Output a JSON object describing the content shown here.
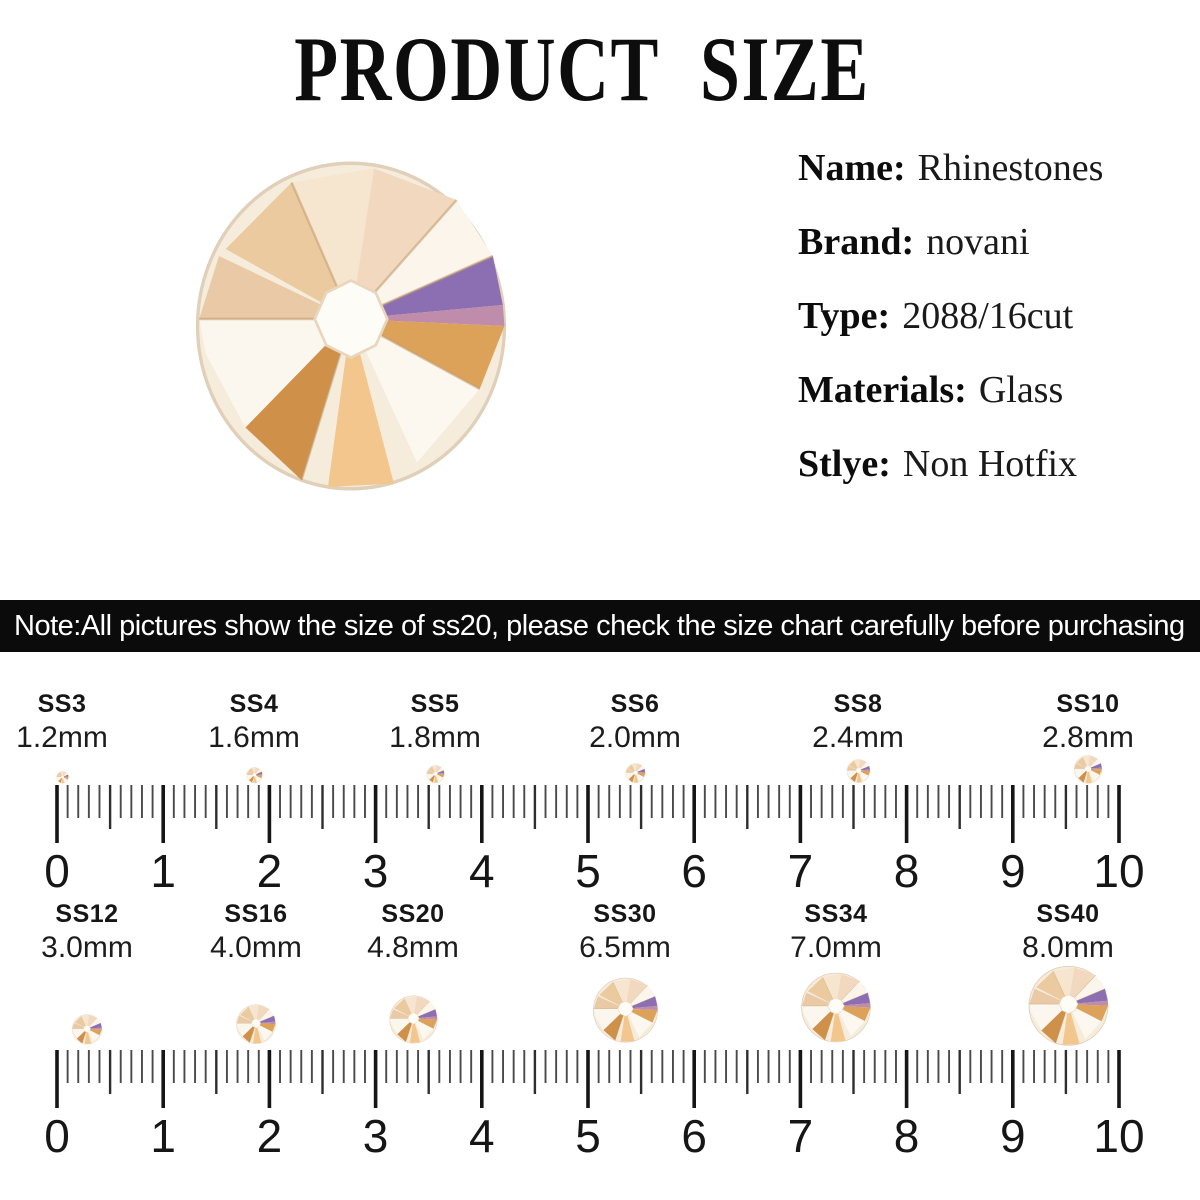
{
  "title": "PRODUCT SIZE",
  "product_photo": {
    "icon": "rhinestone-photo",
    "description_color_hex": "#f3c68e"
  },
  "specs": [
    {
      "label": "Name:",
      "value": "Rhinestones"
    },
    {
      "label": "Brand:",
      "value": "novani"
    },
    {
      "label": "Type:",
      "value": "2088/16cut"
    },
    {
      "label": "Materials:",
      "value": "Glass"
    },
    {
      "label": "Stlye:",
      "value": "Non Hotfix"
    }
  ],
  "note_banner": "Note:All pictures show the size of ss20, please check the size chart carefully before purchasing",
  "size_chart": {
    "rows": [
      {
        "sizes": [
          {
            "ss": "SS3",
            "mm": "1.2mm"
          },
          {
            "ss": "SS4",
            "mm": "1.6mm"
          },
          {
            "ss": "SS5",
            "mm": "1.8mm"
          },
          {
            "ss": "SS6",
            "mm": "2.0mm"
          },
          {
            "ss": "SS8",
            "mm": "2.4mm"
          },
          {
            "ss": "SS10",
            "mm": "2.8mm"
          }
        ]
      },
      {
        "sizes": [
          {
            "ss": "SS12",
            "mm": "3.0mm"
          },
          {
            "ss": "SS16",
            "mm": "4.0mm"
          },
          {
            "ss": "SS20",
            "mm": "4.8mm"
          },
          {
            "ss": "SS30",
            "mm": "6.5mm"
          },
          {
            "ss": "SS34",
            "mm": "7.0mm"
          },
          {
            "ss": "SS40",
            "mm": "8.0mm"
          }
        ]
      }
    ],
    "ruler": {
      "numbers": [
        "0",
        "1",
        "2",
        "3",
        "4",
        "5",
        "6",
        "7",
        "8",
        "9",
        "10"
      ],
      "minor_divisions_per_unit": 10
    }
  },
  "colors": {
    "banner_bg": "#0b0b0b",
    "banner_text": "#ffffff",
    "gem_amber": "#f3c68e",
    "gem_orange": "#cf9049",
    "gem_purple": "#8c6fb2",
    "gem_peach": "#ecca9f",
    "gem_cream": "#f6e5cf"
  }
}
